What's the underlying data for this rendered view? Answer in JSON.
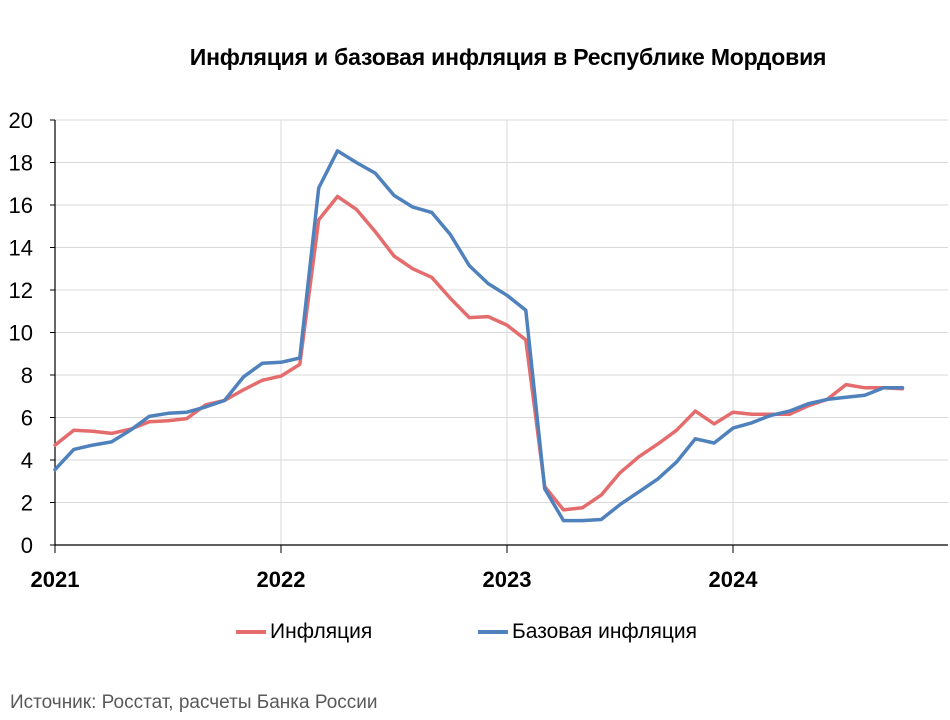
{
  "chart_data": {
    "type": "line",
    "title": "Инфляция и базовая инфляция в Республике Мордовия",
    "xlabel": "",
    "ylabel": "",
    "ylim": [
      0,
      20
    ],
    "yticks": [
      "0",
      "2",
      "4",
      "6",
      "8",
      "10",
      "12",
      "14",
      "16",
      "18",
      "20"
    ],
    "xticks": [
      "2021",
      "2022",
      "2023",
      "2024"
    ],
    "x_start": "2021-01",
    "grid": true,
    "legend_position": "bottom",
    "x": [
      "2021-01",
      "2021-02",
      "2021-03",
      "2021-04",
      "2021-05",
      "2021-06",
      "2021-07",
      "2021-08",
      "2021-09",
      "2021-10",
      "2021-11",
      "2021-12",
      "2022-01",
      "2022-02",
      "2022-03",
      "2022-04",
      "2022-05",
      "2022-06",
      "2022-07",
      "2022-08",
      "2022-09",
      "2022-10",
      "2022-11",
      "2022-12",
      "2023-01",
      "2023-02",
      "2023-03",
      "2023-04",
      "2023-05",
      "2023-06",
      "2023-07",
      "2023-08",
      "2023-09",
      "2023-10",
      "2023-11",
      "2023-12",
      "2024-01",
      "2024-02",
      "2024-03",
      "2024-04",
      "2024-05",
      "2024-06",
      "2024-07",
      "2024-08",
      "2024-09",
      "2024-10"
    ],
    "series": [
      {
        "name": "Инфляция",
        "color": "#e46c6c",
        "values": [
          4.7,
          5.4,
          5.35,
          5.25,
          5.45,
          5.8,
          5.85,
          5.95,
          6.6,
          6.8,
          7.3,
          7.75,
          7.95,
          8.5,
          15.3,
          16.4,
          15.8,
          14.75,
          13.6,
          13.0,
          12.6,
          11.6,
          10.7,
          10.75,
          10.35,
          9.65,
          2.75,
          1.65,
          1.75,
          2.35,
          3.4,
          4.15,
          4.75,
          5.4,
          6.3,
          5.7,
          6.25,
          6.15,
          6.15,
          6.15,
          6.55,
          6.85,
          7.55,
          7.4,
          7.4,
          7.35
        ]
      },
      {
        "name": "Базовая инфляция",
        "color": "#4f81bd",
        "values": [
          3.55,
          4.5,
          4.7,
          4.85,
          5.4,
          6.05,
          6.2,
          6.25,
          6.5,
          6.8,
          7.9,
          8.55,
          8.6,
          8.8,
          16.8,
          18.55,
          18.0,
          17.5,
          16.45,
          15.9,
          15.65,
          14.6,
          13.15,
          12.3,
          11.75,
          11.05,
          2.65,
          1.15,
          1.15,
          1.2,
          1.9,
          2.5,
          3.1,
          3.9,
          5.0,
          4.8,
          5.5,
          5.75,
          6.1,
          6.3,
          6.65,
          6.85,
          6.95,
          7.05,
          7.4,
          7.4
        ]
      }
    ]
  },
  "source_note": "Источник: Росстат, расчеты Банка России"
}
